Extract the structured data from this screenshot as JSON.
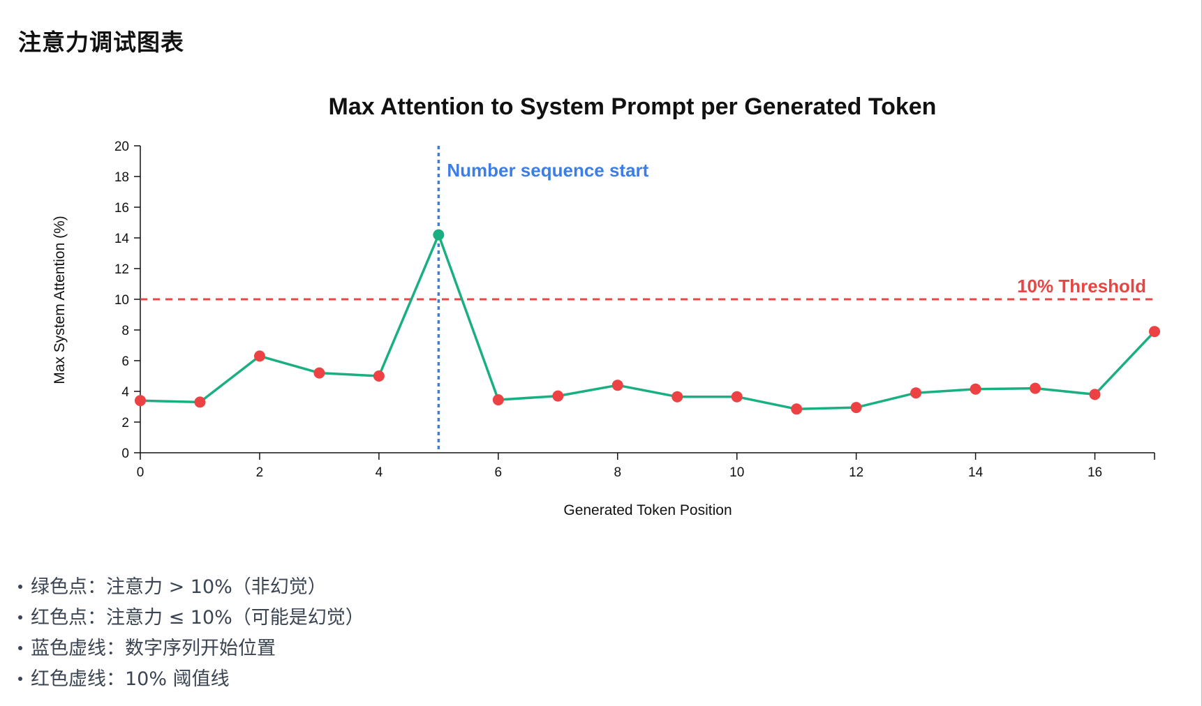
{
  "page": {
    "title": "注意力调试图表"
  },
  "colors": {
    "line": "#1aaf82",
    "above_threshold": "#1aaf82",
    "below_threshold": "#ec4244",
    "threshold": "#e84545",
    "marker": "#3d7ee6",
    "axis": "#111111"
  },
  "chart_data": {
    "type": "line",
    "title": "Max Attention to System Prompt per Generated Token",
    "xlabel": "Generated Token Position",
    "ylabel": "Max System Attention (%)",
    "xlim": [
      0,
      17
    ],
    "ylim": [
      0,
      20
    ],
    "x_ticks": [
      0,
      2,
      4,
      6,
      8,
      10,
      12,
      14,
      16
    ],
    "x_tick_labels": [
      "0",
      "2",
      "4",
      "6",
      "8",
      "10",
      "12",
      "14",
      "16"
    ],
    "y_ticks": [
      0,
      2,
      4,
      6,
      8,
      10,
      12,
      14,
      16,
      18,
      20
    ],
    "y_tick_labels": [
      "0",
      "2",
      "4",
      "6",
      "8",
      "10",
      "12",
      "14",
      "16",
      "18",
      "20"
    ],
    "x": [
      0,
      1,
      2,
      3,
      4,
      5,
      6,
      7,
      8,
      9,
      10,
      11,
      12,
      13,
      14,
      15,
      16,
      17
    ],
    "values": [
      3.4,
      3.3,
      6.3,
      5.2,
      5.0,
      14.2,
      3.45,
      3.7,
      4.4,
      3.65,
      3.65,
      2.85,
      2.95,
      3.9,
      4.15,
      4.2,
      3.8,
      7.9
    ],
    "threshold": {
      "value": 10,
      "label": "10% Threshold"
    },
    "marker": {
      "x": 5,
      "label": "Number sequence start"
    }
  },
  "notes": [
    "绿色点：注意力 > 10%（非幻觉）",
    "红色点：注意力 ≤ 10%（可能是幻觉）",
    "蓝色虚线：数字序列开始位置",
    "红色虚线：10% 阈值线"
  ]
}
